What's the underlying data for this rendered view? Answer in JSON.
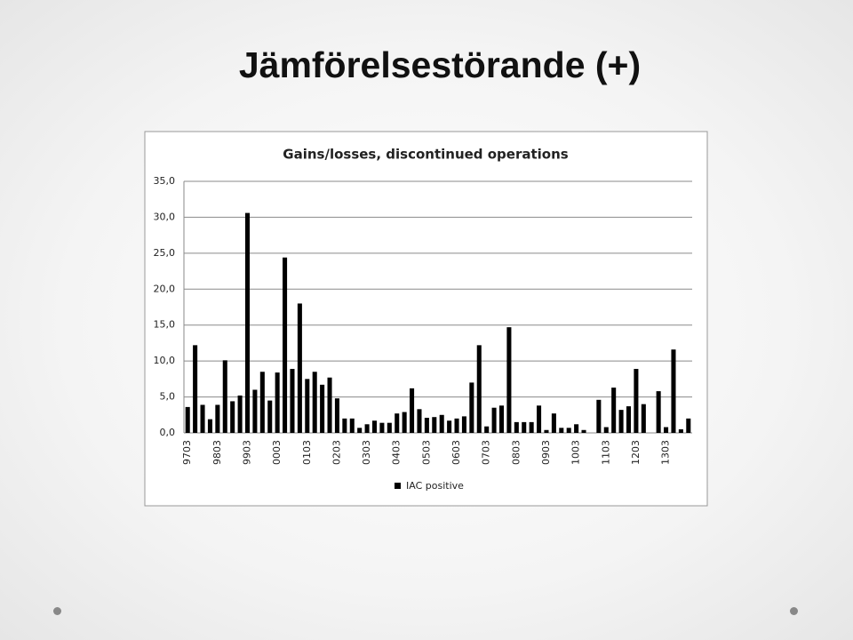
{
  "title": "Jämförelsestörande (+)",
  "chart_data": {
    "type": "bar",
    "title": "Gains/losses, discontinued operations",
    "categories": [
      "9703",
      null,
      null,
      null,
      "9803",
      null,
      null,
      null,
      "9903",
      null,
      null,
      null,
      "0003",
      null,
      null,
      null,
      "0103",
      null,
      null,
      null,
      "0203",
      null,
      null,
      null,
      "0303",
      null,
      null,
      null,
      "0403",
      null,
      null,
      null,
      "0503",
      null,
      null,
      null,
      "0603",
      null,
      null,
      null,
      "0703",
      null,
      null,
      null,
      "0803",
      null,
      null,
      null,
      "0903",
      null,
      null,
      null,
      "1003",
      null,
      null,
      null,
      "1103",
      null,
      null,
      null,
      "1203",
      null,
      null,
      null,
      "1303",
      null,
      null,
      null
    ],
    "series": [
      {
        "name": "IAC positive",
        "color": "#000000",
        "values": [
          3.6,
          12.2,
          3.9,
          1.9,
          3.9,
          10.1,
          4.4,
          5.2,
          30.6,
          6.0,
          8.5,
          4.5,
          8.4,
          24.4,
          8.9,
          18.0,
          7.5,
          8.5,
          6.7,
          7.7,
          4.8,
          2.0,
          2.0,
          0.7,
          1.2,
          1.7,
          1.4,
          1.4,
          2.7,
          2.9,
          6.2,
          3.3,
          2.1,
          2.2,
          2.5,
          1.7,
          2.0,
          2.3,
          7.0,
          12.2,
          0.9,
          3.5,
          3.8,
          14.7,
          1.5,
          1.5,
          1.5,
          3.8,
          0.4,
          2.7,
          0.7,
          0.7,
          1.2,
          0.4,
          0,
          4.6,
          0.8,
          6.3,
          3.2,
          3.7,
          8.9,
          4.0,
          0,
          5.8,
          0.8,
          11.6,
          0.5,
          2.0
        ]
      }
    ],
    "ylim": [
      0,
      35
    ],
    "yticks": [
      {
        "value": 0,
        "label": "0,0"
      },
      {
        "value": 5,
        "label": "5,0"
      },
      {
        "value": 10,
        "label": "10,0"
      },
      {
        "value": 15,
        "label": "15,0"
      },
      {
        "value": 20,
        "label": "20,0"
      },
      {
        "value": 25,
        "label": "25,0"
      },
      {
        "value": 30,
        "label": "30,0"
      },
      {
        "value": 35,
        "label": "35,0"
      }
    ],
    "grid": true,
    "legend": "bottom"
  }
}
